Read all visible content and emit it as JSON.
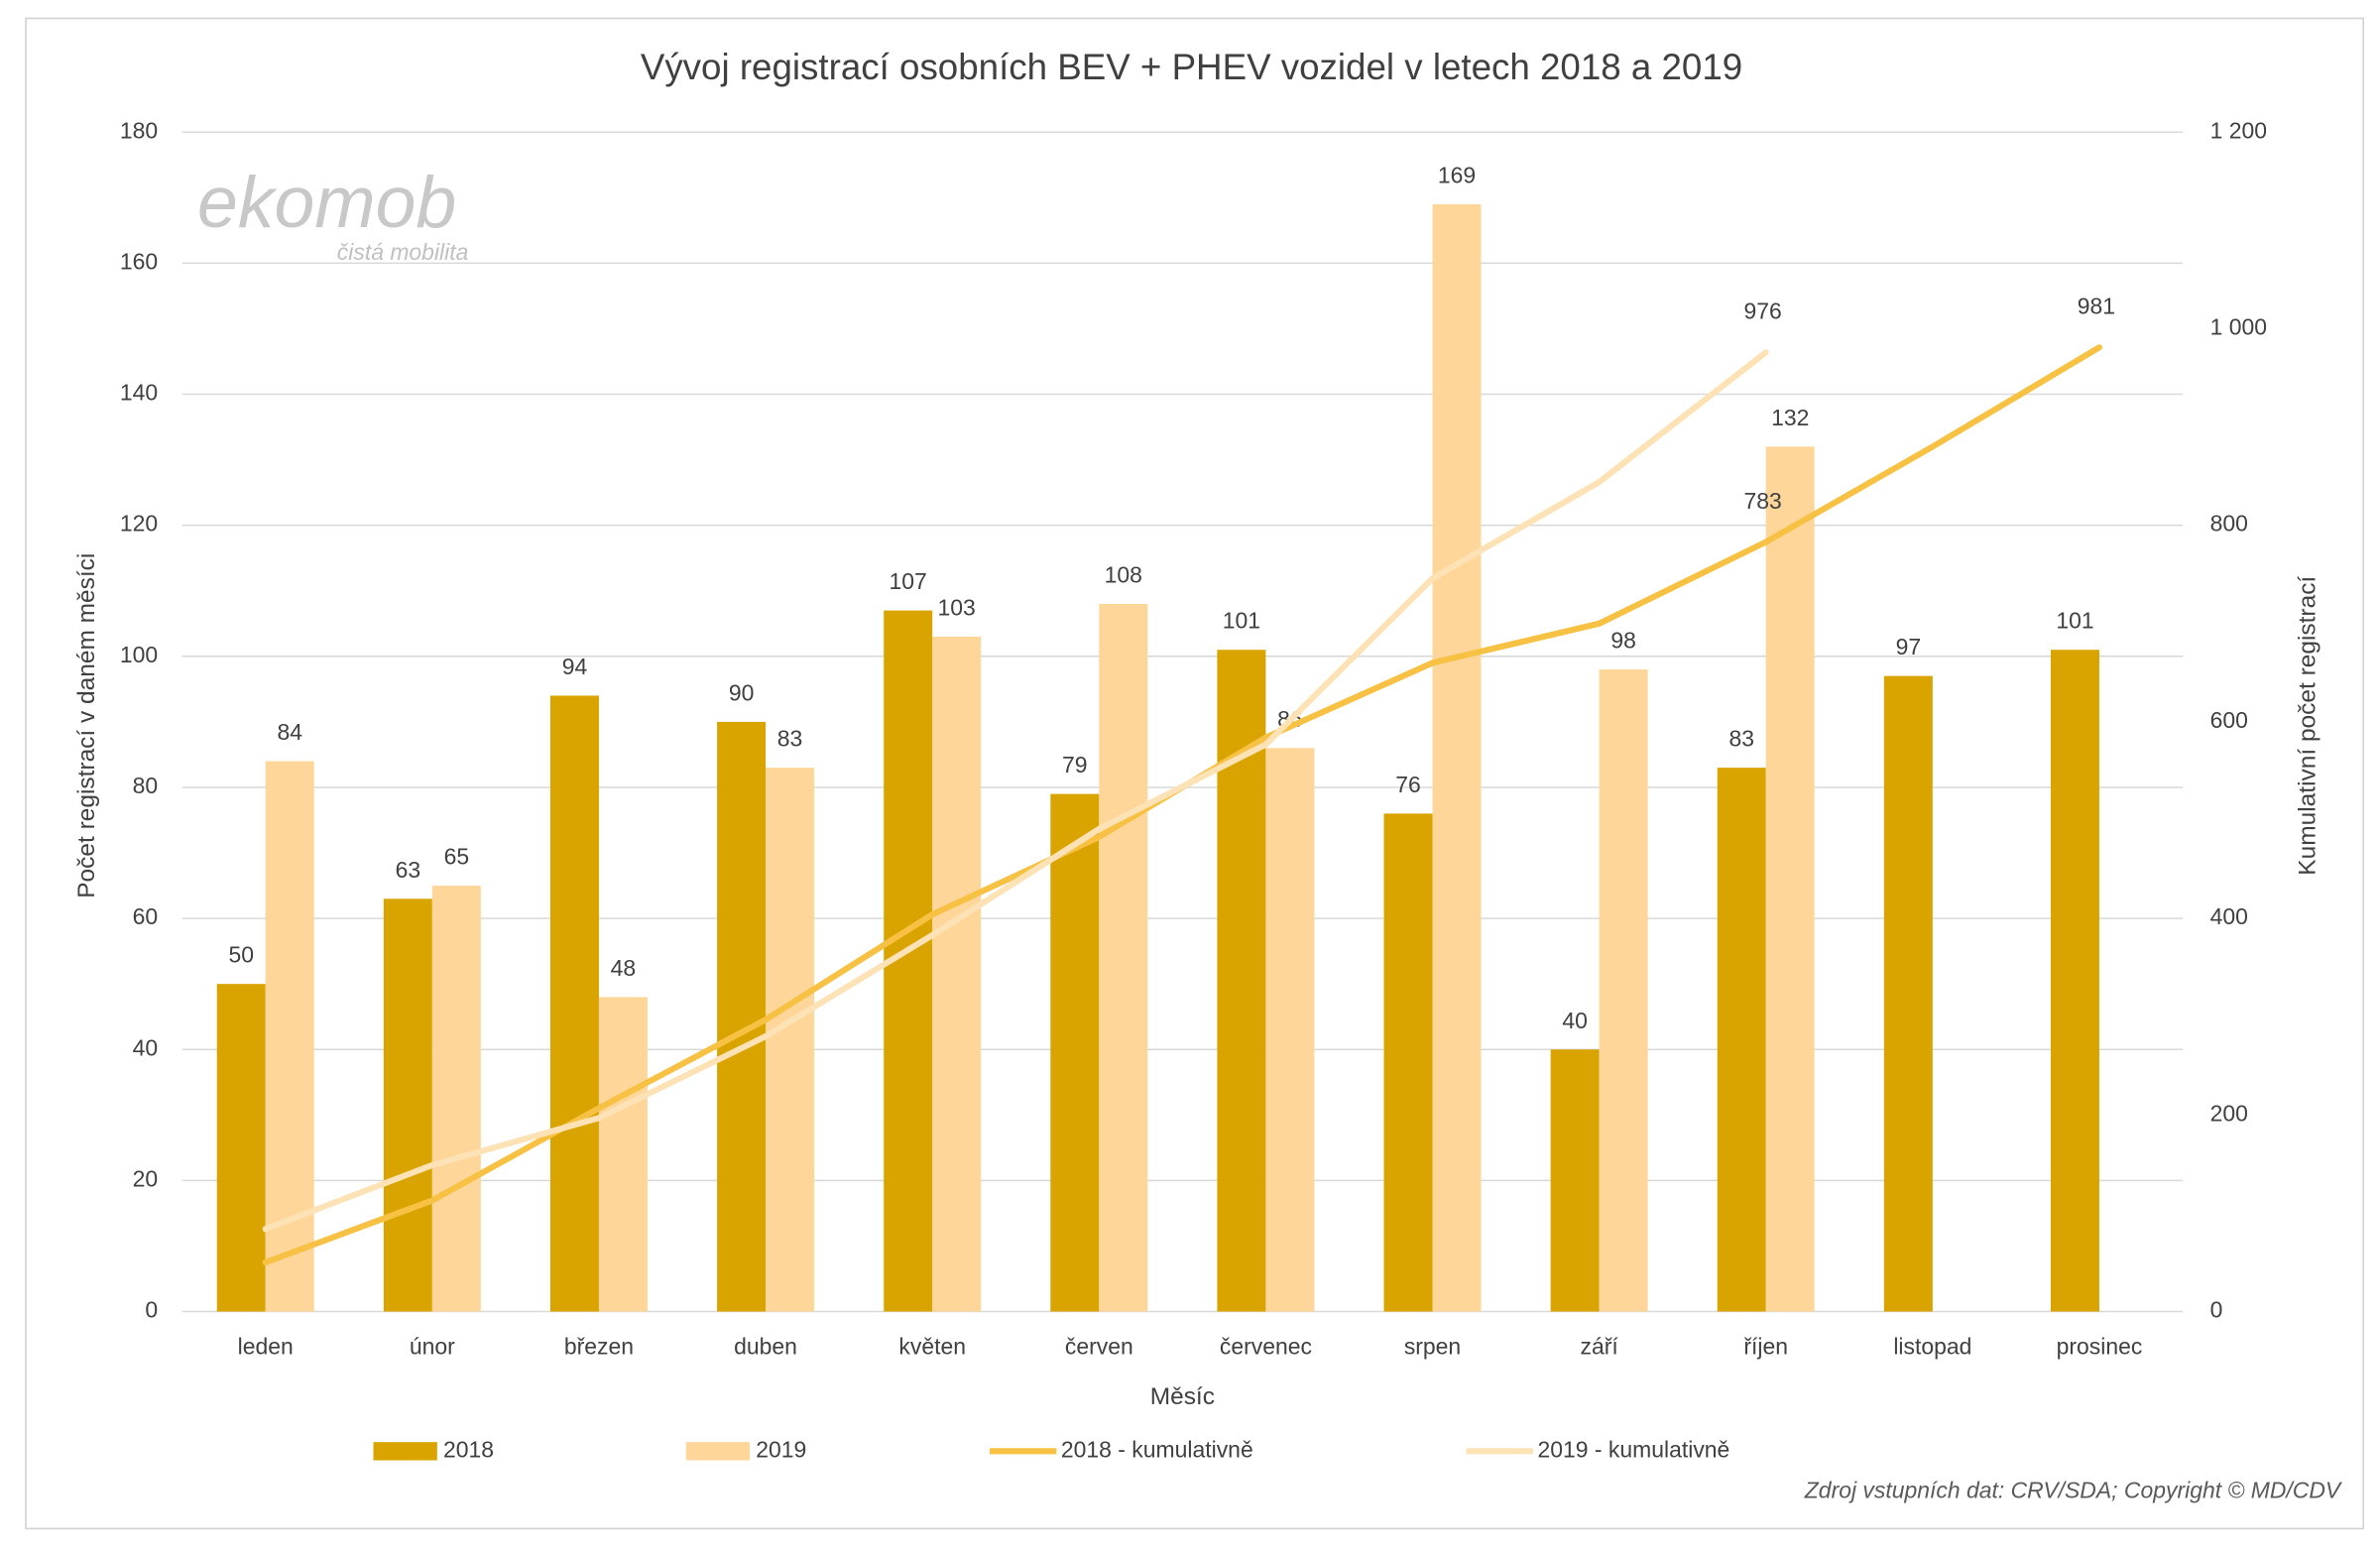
{
  "chart_data": {
    "type": "bar_line",
    "title": "Vývoj registrací osobních BEV + PHEV vozidel v letech 2018 a 2019",
    "x_label": "Měsíc",
    "y_label": "Počet registrací v daném měsíci",
    "y2_label": "Kumulativní počet registrací",
    "watermark": "ekomob",
    "watermark_sub": "čistá mobilita",
    "source": "Zdroj vstupních dat: CRV/SDA; Copyright © MD/CDV",
    "categories": [
      "leden",
      "únor",
      "březen",
      "duben",
      "květen",
      "červen",
      "červenec",
      "srpen",
      "září",
      "říjen",
      "listopad",
      "prosinec"
    ],
    "series": [
      {
        "name": "2018",
        "type": "bar",
        "color": "#d9a400",
        "values": [
          50,
          63,
          94,
          90,
          107,
          79,
          101,
          76,
          40,
          83,
          97,
          101
        ]
      },
      {
        "name": "2019",
        "type": "bar",
        "color": "#ffd699",
        "values": [
          84,
          65,
          48,
          83,
          103,
          108,
          86,
          169,
          98,
          132,
          null,
          null
        ]
      },
      {
        "name": "2018 - kumulativně",
        "type": "line",
        "axis": "y2",
        "color": "#f7c244",
        "values": [
          50,
          113,
          207,
          297,
          404,
          483,
          584,
          660,
          700,
          783,
          880,
          981
        ],
        "value_labels": [
          null,
          null,
          null,
          null,
          null,
          null,
          null,
          null,
          null,
          "783",
          null,
          "981"
        ]
      },
      {
        "name": "2019 - kumulativně",
        "type": "line",
        "axis": "y2",
        "color": "#fde2b6",
        "values": [
          84,
          149,
          197,
          280,
          383,
          491,
          577,
          746,
          844,
          976,
          null,
          null
        ],
        "value_labels": [
          null,
          null,
          null,
          null,
          null,
          null,
          null,
          null,
          null,
          "976",
          null,
          null
        ]
      }
    ],
    "ylim": [
      0,
      180
    ],
    "yticks": [
      0,
      20,
      40,
      60,
      80,
      100,
      120,
      140,
      160,
      180
    ],
    "y2lim": [
      0,
      1200
    ],
    "y2ticks": [
      0,
      200,
      400,
      600,
      800,
      {
        "value": 1000,
        "label": "1 000"
      },
      {
        "value": 1200,
        "label": "1 200"
      }
    ],
    "grid": true,
    "legend": "bottom"
  }
}
